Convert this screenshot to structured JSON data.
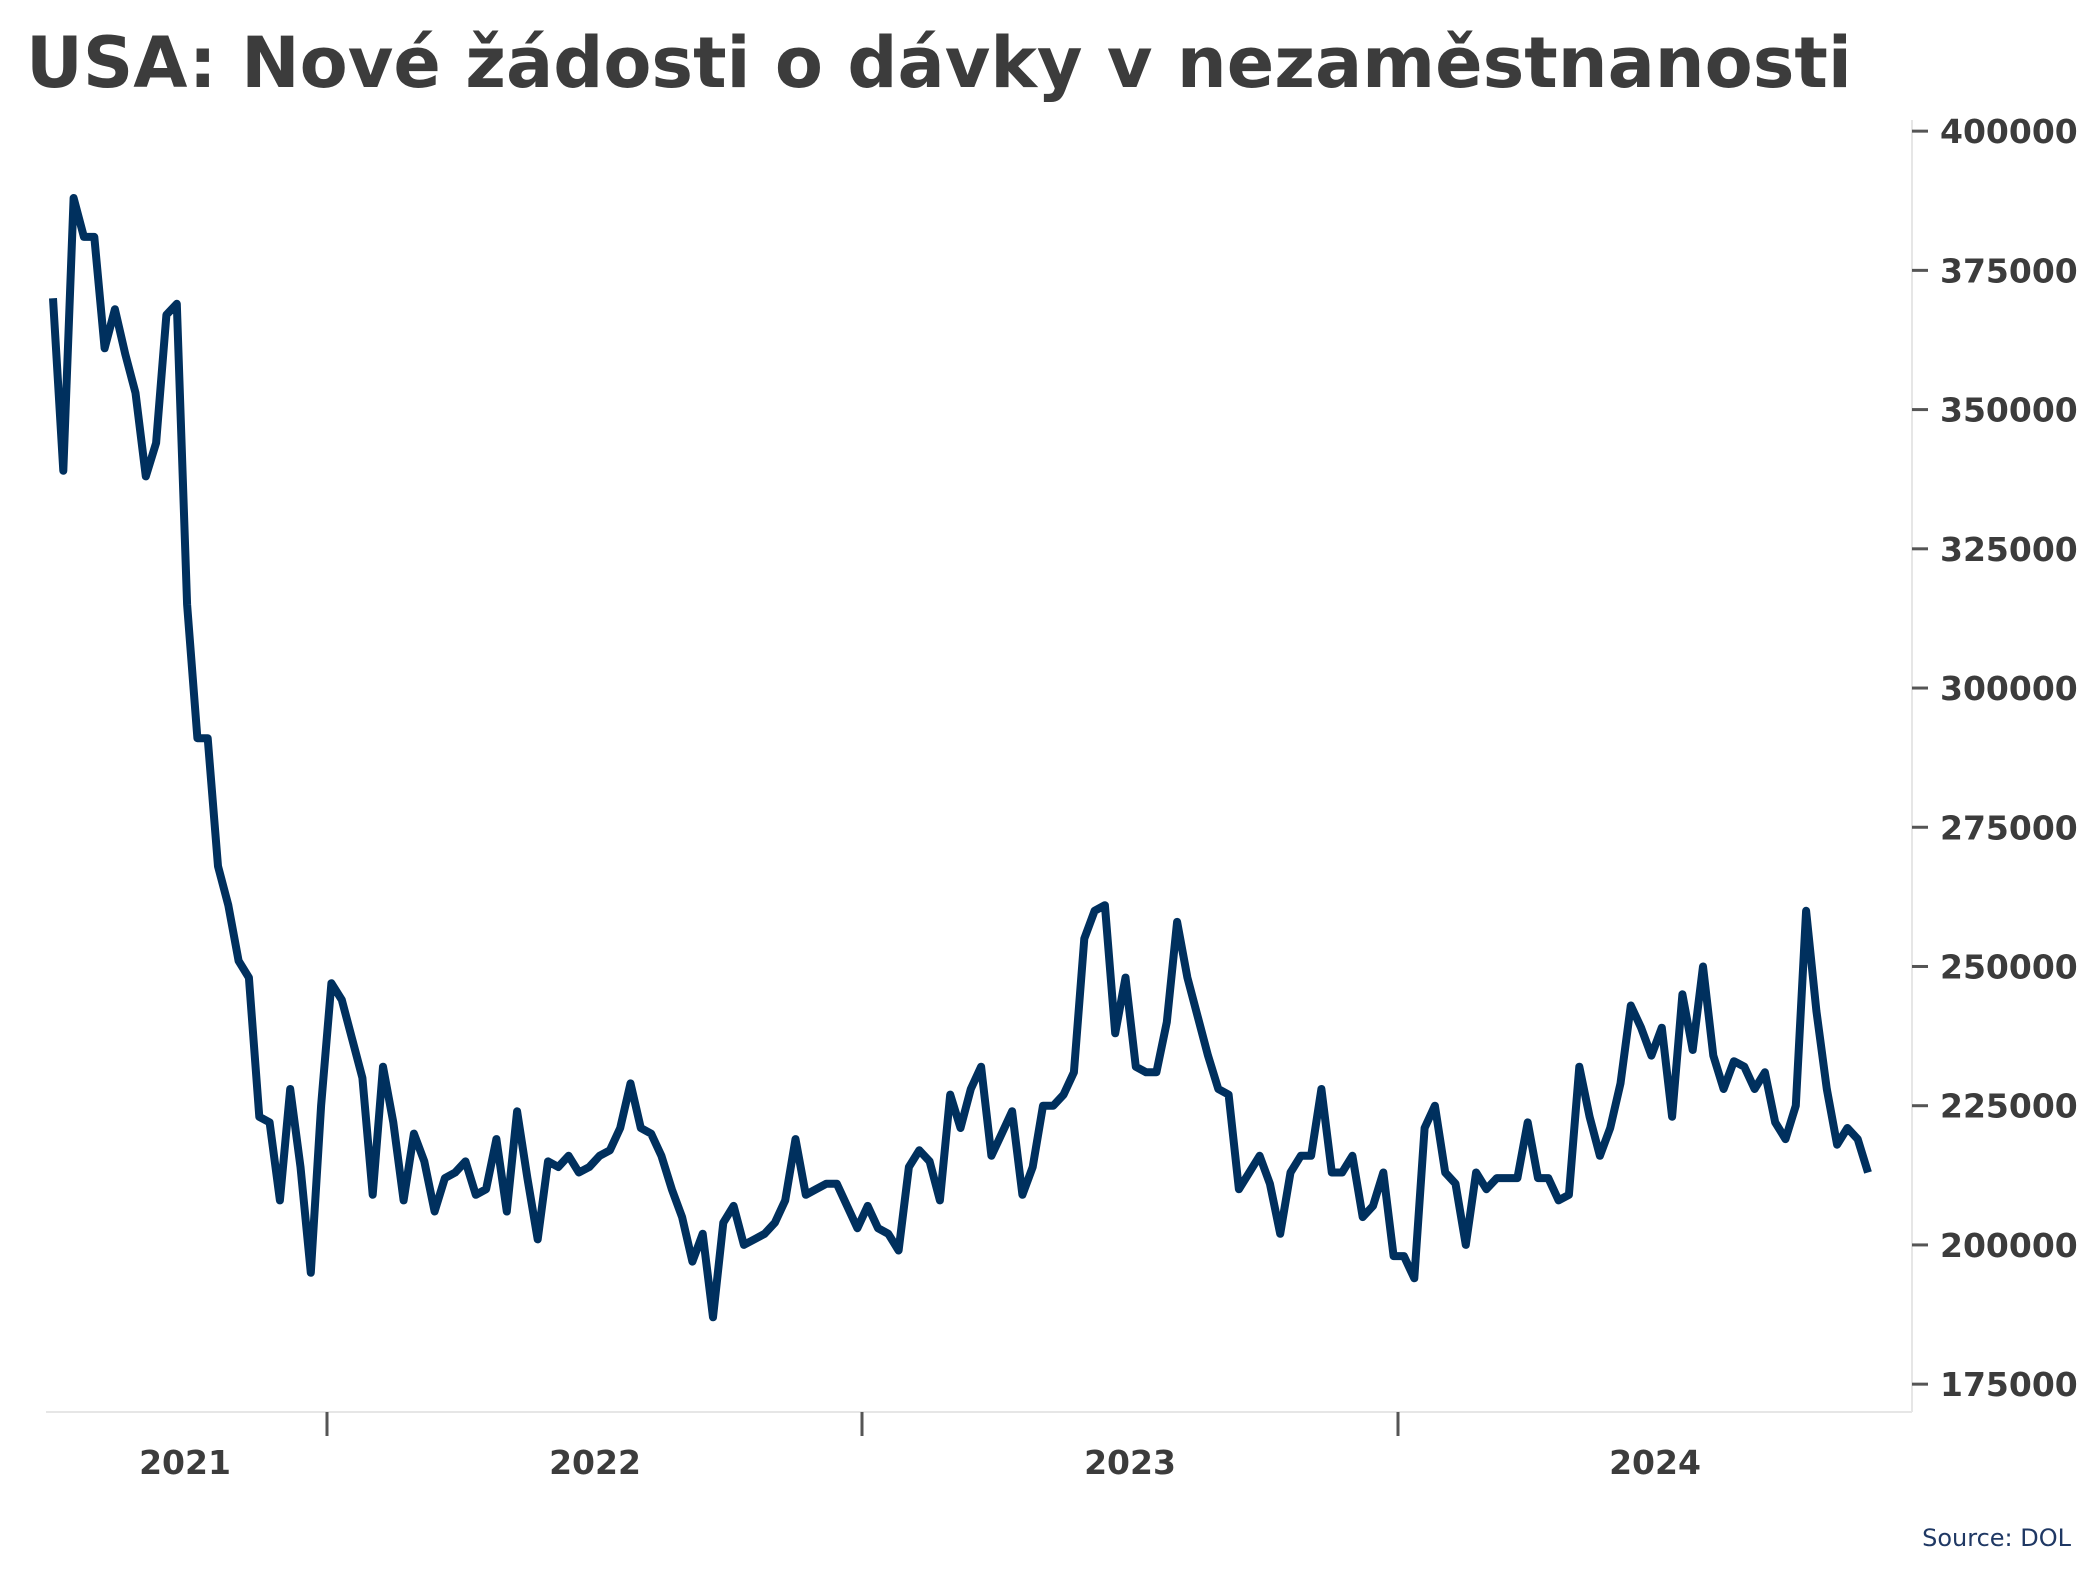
{
  "title": "USA: Nové žádosti o dávky v nezaměstnanosti",
  "source": "Source: DOL",
  "colors": {
    "line": "#00305e",
    "text": "#3c3c3c",
    "axis": "#999999",
    "source": "#1f3864"
  },
  "chart_data": {
    "type": "line",
    "title": "USA: Nové žádosti o dávky v nezaměstnanosti",
    "xlabel": "",
    "ylabel": "",
    "grid": false,
    "y_axis_position": "right",
    "x_tick_labels": [
      "2021",
      "2022",
      "2023",
      "2024"
    ],
    "y_ticks": [
      175000,
      200000,
      225000,
      250000,
      275000,
      300000,
      325000,
      350000,
      375000,
      400000
    ],
    "ylim": [
      170000,
      402000
    ],
    "series": [
      {
        "values": [
          370000,
          339000,
          388000,
          381000,
          381000,
          361000,
          368000,
          360000,
          353000,
          338000,
          344000,
          367000,
          369000,
          315000,
          291000,
          291000,
          268000,
          261000,
          251000,
          248000,
          223000,
          222000,
          208000,
          228000,
          214000,
          195000,
          225000,
          247000,
          244000,
          237000,
          230000,
          209000,
          232000,
          222000,
          208000,
          220000,
          215000,
          206000,
          212000,
          213000,
          215000,
          209000,
          210000,
          219000,
          206000,
          224000,
          212000,
          201000,
          215000,
          214000,
          216000,
          213000,
          214000,
          216000,
          217000,
          221000,
          229000,
          221000,
          220000,
          216000,
          210000,
          205000,
          197000,
          202000,
          187000,
          204000,
          207000,
          200000,
          201000,
          202000,
          204000,
          208000,
          219000,
          209000,
          210000,
          211000,
          211000,
          207000,
          203000,
          207000,
          203000,
          202000,
          199000,
          214000,
          217000,
          215000,
          208000,
          227000,
          221000,
          228000,
          232000,
          216000,
          220000,
          224000,
          209000,
          214000,
          225000,
          225000,
          227000,
          231000,
          255000,
          260000,
          261000,
          238000,
          248000,
          232000,
          231000,
          231000,
          240000,
          258000,
          248000,
          241000,
          234000,
          228000,
          227000,
          210000,
          213000,
          216000,
          211000,
          202000,
          213000,
          216000,
          216000,
          228000,
          213000,
          213000,
          216000,
          205000,
          207000,
          213000,
          198000,
          198000,
          194000,
          221000,
          225000,
          213000,
          211000,
          200000,
          213000,
          210000,
          212000,
          212000,
          212000,
          222000,
          212000,
          212000,
          208000,
          209000,
          232000,
          223000,
          216000,
          221000,
          229000,
          243000,
          239000,
          234000,
          239000,
          223000,
          245000,
          235000,
          250000,
          234000,
          228000,
          233000,
          232000,
          228000,
          231000,
          222000,
          219000,
          225000,
          260000,
          242000,
          228000,
          218000,
          221000,
          219000,
          213000
        ]
      }
    ]
  }
}
